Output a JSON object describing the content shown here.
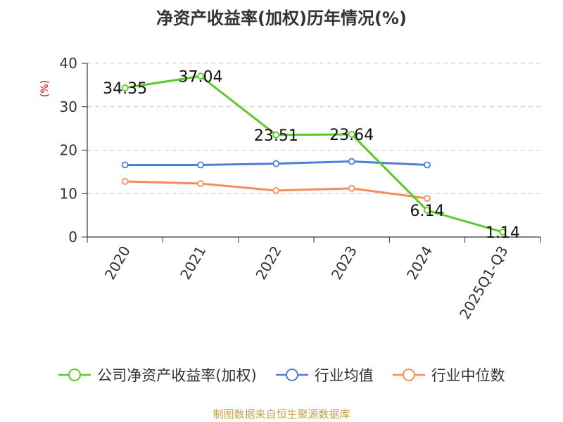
{
  "title": "净资产收益率(加权)历年情况(%)",
  "source_text": "制图数据来自恒生聚源数据库",
  "chart_data": {
    "type": "line",
    "categories": [
      "2020",
      "2021",
      "2022",
      "2023",
      "2024",
      "2025Q1-Q3"
    ],
    "ylabel": "(%)",
    "ylim": [
      0,
      40
    ],
    "yticks": [
      0,
      10,
      20,
      30,
      40
    ],
    "grid": true,
    "legend_position": "bottom",
    "series": [
      {
        "name": "公司净资产收益率(加权)",
        "color": "#5ec72e",
        "values": [
          34.35,
          37.04,
          23.51,
          23.64,
          6.14,
          1.14
        ],
        "labels": [
          "34.35",
          "37.04",
          "23.51",
          "23.64",
          "6.14",
          "1.14"
        ]
      },
      {
        "name": "行业均值",
        "color": "#4f7fd8",
        "values": [
          16.6,
          16.6,
          16.9,
          17.4,
          16.6,
          null
        ]
      },
      {
        "name": "行业中位数",
        "color": "#f58e5a",
        "values": [
          12.8,
          12.3,
          10.7,
          11.2,
          8.9,
          null
        ]
      }
    ]
  }
}
